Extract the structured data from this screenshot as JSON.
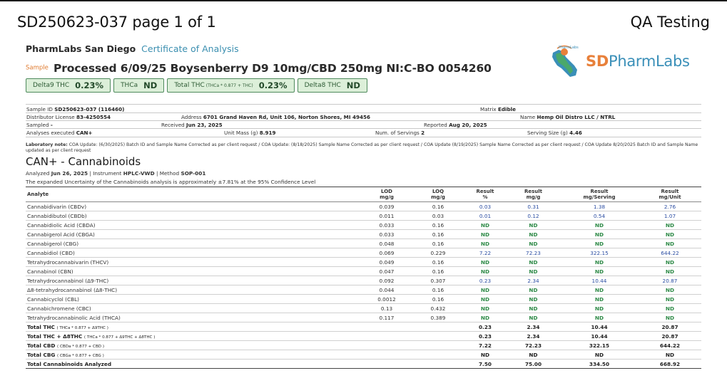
{
  "header": {
    "doc_id": "SD250623-037 page 1 of 1",
    "right_label": "QA Testing"
  },
  "lab": {
    "name": "PharmLabs San Diego",
    "doc_type": "Certificate of Analysis",
    "logo_small": "PharmLabs",
    "logo_sd": "SD",
    "logo_rest": "PharmLabs"
  },
  "sample": {
    "tag": "Sample",
    "title": "Processed 6/09/25 Boysenberry D9 10mg/CBD 250mg NI:C-BO 0054260"
  },
  "badges": [
    {
      "label": "Delta9 THC",
      "sub": "",
      "value": "0.23%"
    },
    {
      "label": "THCa",
      "sub": "",
      "value": "ND"
    },
    {
      "label": "Total THC",
      "sub": "(THCa * 0.877 + THC)",
      "value": "0.23%"
    },
    {
      "label": "Delta8 THC",
      "sub": "",
      "value": "ND"
    }
  ],
  "info": {
    "sample_id_label": "Sample ID",
    "sample_id": "SD250623-037 (116460)",
    "matrix_label": "Matrix",
    "matrix": "Edible",
    "distributor_label": "Distributor License",
    "distributor": "83-4250554",
    "address_label": "Address",
    "address": "6701 Grand Haven Rd, Unit 106, Norton Shores, MI 49456",
    "name_label": "Name",
    "name": "Hemp Oil Distro LLC / NTRL",
    "sampled_label": "Sampled",
    "sampled": "-",
    "received_label": "Received",
    "received": "Jun 23, 2025",
    "reported_label": "Reported",
    "reported": "Aug 20, 2025",
    "analyses_label": "Analyses executed",
    "analyses": "CAN+",
    "unit_mass_label": "Unit Mass (g)",
    "unit_mass": "8.919",
    "servings_label": "Num. of Servings",
    "servings": "2",
    "serving_size_label": "Serving Size (g)",
    "serving_size": "4.46"
  },
  "note": {
    "label": "Laboratory note:",
    "text": "COA Update: (6/30/2025) Batch ID and Sample Name Corrected as per client request / COA Update: (8/18/2025) Sample Name Corrected as per client request / COA Update (8/19/2025) Sample Name Corrected as per client request / COA Update 8/20/2025 Batch ID and Sample Name updated as per client request"
  },
  "section": {
    "title": "CAN+ - Cannabinoids",
    "analyzed_label": "Analyzed",
    "analyzed_date": "Jun 26, 2025",
    "instrument_label": "Instrument",
    "instrument": "HPLC-VWD",
    "method_label": "Method",
    "method": "SOP-001",
    "sep": "|",
    "uncertainty": "The expanded Uncertainty of the Cannabinoids analysis is approximately ±7.81% at the 95% Confidence Level"
  },
  "table": {
    "headers": [
      {
        "l1": "Analyte",
        "l2": ""
      },
      {
        "l1": "LOD",
        "l2": "mg/g"
      },
      {
        "l1": "LOQ",
        "l2": "mg/g"
      },
      {
        "l1": "Result",
        "l2": "%"
      },
      {
        "l1": "Result",
        "l2": "mg/g"
      },
      {
        "l1": "Result",
        "l2": "mg/Serving"
      },
      {
        "l1": "Result",
        "l2": "mg/Unit"
      }
    ],
    "rows": [
      {
        "analyte": "Cannabidivarin (CBDv)",
        "lod": "0.039",
        "loq": "0.16",
        "pct": "0.03",
        "mgg": "0.31",
        "mgs": "1.38",
        "mgu": "2.76"
      },
      {
        "analyte": "Cannabidibutol (CBDb)",
        "lod": "0.011",
        "loq": "0.03",
        "pct": "0.01",
        "mgg": "0.12",
        "mgs": "0.54",
        "mgu": "1.07"
      },
      {
        "analyte": "Cannabidiolic Acid (CBDA)",
        "lod": "0.033",
        "loq": "0.16",
        "pct": "ND",
        "mgg": "ND",
        "mgs": "ND",
        "mgu": "ND"
      },
      {
        "analyte": "Cannabigerol Acid (CBGA)",
        "lod": "0.033",
        "loq": "0.16",
        "pct": "ND",
        "mgg": "ND",
        "mgs": "ND",
        "mgu": "ND"
      },
      {
        "analyte": "Cannabigerol (CBG)",
        "lod": "0.048",
        "loq": "0.16",
        "pct": "ND",
        "mgg": "ND",
        "mgs": "ND",
        "mgu": "ND"
      },
      {
        "analyte": "Cannabidiol (CBD)",
        "lod": "0.069",
        "loq": "0.229",
        "pct": "7.22",
        "mgg": "72.23",
        "mgs": "322.15",
        "mgu": "644.22"
      },
      {
        "analyte": "Tetrahydrocannabivarin (THCV)",
        "lod": "0.049",
        "loq": "0.16",
        "pct": "ND",
        "mgg": "ND",
        "mgs": "ND",
        "mgu": "ND"
      },
      {
        "analyte": "Cannabinol (CBN)",
        "lod": "0.047",
        "loq": "0.16",
        "pct": "ND",
        "mgg": "ND",
        "mgs": "ND",
        "mgu": "ND"
      },
      {
        "analyte": "Tetrahydrocannabinol (Δ9-THC)",
        "lod": "0.092",
        "loq": "0.307",
        "pct": "0.23",
        "mgg": "2.34",
        "mgs": "10.44",
        "mgu": "20.87"
      },
      {
        "analyte": "Δ8-tetrahydrocannabinol (Δ8-THC)",
        "lod": "0.044",
        "loq": "0.16",
        "pct": "ND",
        "mgg": "ND",
        "mgs": "ND",
        "mgu": "ND"
      },
      {
        "analyte": "Cannabicyclol (CBL)",
        "lod": "0.0012",
        "loq": "0.16",
        "pct": "ND",
        "mgg": "ND",
        "mgs": "ND",
        "mgu": "ND"
      },
      {
        "analyte": "Cannabichromene (CBC)",
        "lod": "0.13",
        "loq": "0.432",
        "pct": "ND",
        "mgg": "ND",
        "mgs": "ND",
        "mgu": "ND"
      },
      {
        "analyte": "Tetrahydrocannabinolic Acid (THCA)",
        "lod": "0.117",
        "loq": "0.389",
        "pct": "ND",
        "mgg": "ND",
        "mgs": "ND",
        "mgu": "ND"
      }
    ],
    "totals": [
      {
        "label": "Total THC",
        "sub": "( THCa * 0.877 + Δ9THC )",
        "pct": "0.23",
        "mgg": "2.34",
        "mgs": "10.44",
        "mgu": "20.87"
      },
      {
        "label": "Total THC + Δ8THC",
        "sub": "( THCa * 0.877 + Δ9THC + Δ8THC )",
        "pct": "0.23",
        "mgg": "2.34",
        "mgs": "10.44",
        "mgu": "20.87"
      },
      {
        "label": "Total CBD",
        "sub": "( CBDa * 0.877 + CBD )",
        "pct": "7.22",
        "mgg": "72.23",
        "mgs": "322.15",
        "mgu": "644.22"
      },
      {
        "label": "Total CBG",
        "sub": "( CBGa * 0.877 + CBG )",
        "pct": "ND",
        "mgg": "ND",
        "mgs": "ND",
        "mgu": "ND"
      },
      {
        "label": "Total Cannabinoids Analyzed",
        "sub": "",
        "pct": "7.50",
        "mgg": "75.00",
        "mgs": "334.50",
        "mgu": "668.92"
      }
    ]
  }
}
